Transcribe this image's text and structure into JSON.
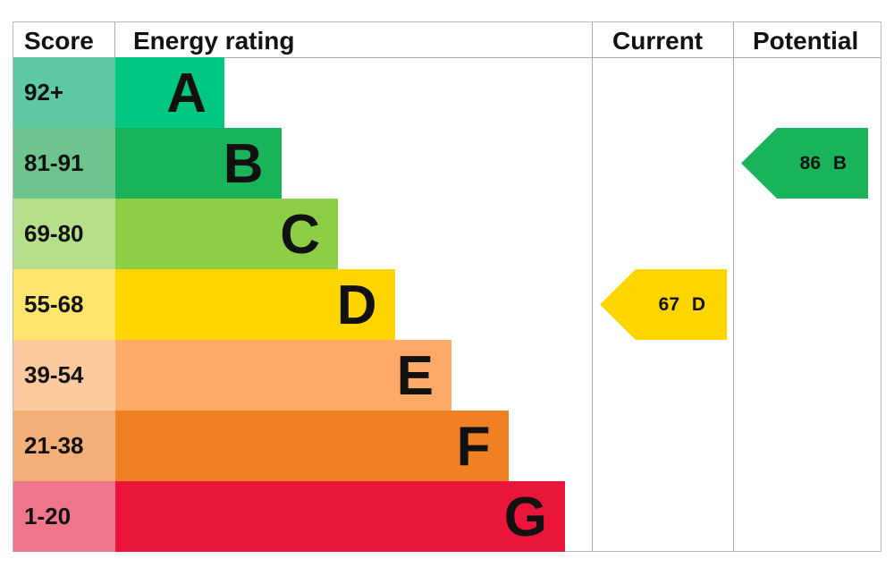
{
  "chart_data": {
    "type": "table",
    "headers": {
      "score": "Score",
      "rating": "Energy rating",
      "current": "Current",
      "potential": "Potential"
    },
    "bands": [
      {
        "letter": "A",
        "range": "92+",
        "color": "#00c781",
        "light": "#5fc8a4"
      },
      {
        "letter": "B",
        "range": "81-91",
        "color": "#19b459",
        "light": "#6dc48c"
      },
      {
        "letter": "C",
        "range": "69-80",
        "color": "#8dce46",
        "light": "#b6df8c"
      },
      {
        "letter": "D",
        "range": "55-68",
        "color": "#ffd500",
        "light": "#ffe46e"
      },
      {
        "letter": "E",
        "range": "39-54",
        "color": "#fcaa65",
        "light": "#fdcaa0"
      },
      {
        "letter": "F",
        "range": "21-38",
        "color": "#ef8023",
        "light": "#f4ae78"
      },
      {
        "letter": "G",
        "range": "1-20",
        "color": "#e9153b",
        "light": "#f0768c"
      }
    ],
    "current": {
      "score": 67,
      "band": "D",
      "label": "67 D"
    },
    "potential": {
      "score": 86,
      "band": "B",
      "label": "86 B"
    }
  }
}
